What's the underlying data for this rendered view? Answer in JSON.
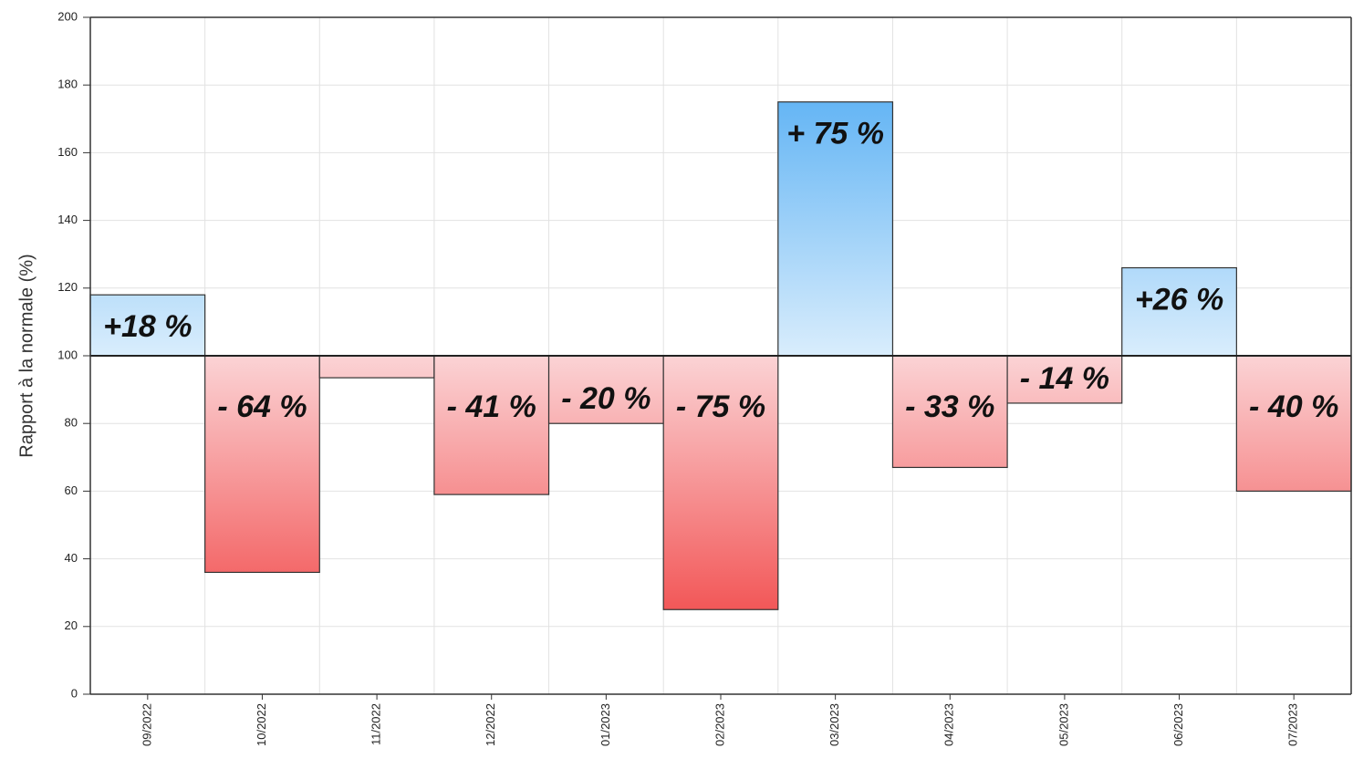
{
  "chart_data": {
    "type": "bar",
    "y_label": "Rapport à la normale (%)",
    "categories": [
      "09/2022",
      "10/2022",
      "11/2022",
      "12/2022",
      "01/2023",
      "02/2023",
      "03/2023",
      "04/2023",
      "05/2023",
      "06/2023",
      "07/2023"
    ],
    "values": [
      118,
      36,
      93.5,
      59,
      80,
      25,
      175,
      67,
      86,
      126,
      60
    ],
    "annotations": [
      "+18 %",
      "- 64 %",
      null,
      "- 41 %",
      "- 20 %",
      "- 75 %",
      "+ 75 %",
      "- 33 %",
      "- 14 %",
      "+26 %",
      "- 40 %"
    ],
    "baseline": 100,
    "colors": {
      "above": [
        "#3ea3f2",
        "#d9edfc"
      ],
      "below": [
        "#fbd3d5",
        "#ef2e2e"
      ]
    },
    "ylim": [
      0,
      200
    ],
    "yticks": [
      0,
      20,
      40,
      60,
      80,
      100,
      120,
      140,
      160,
      180,
      200
    ],
    "grid": true
  }
}
